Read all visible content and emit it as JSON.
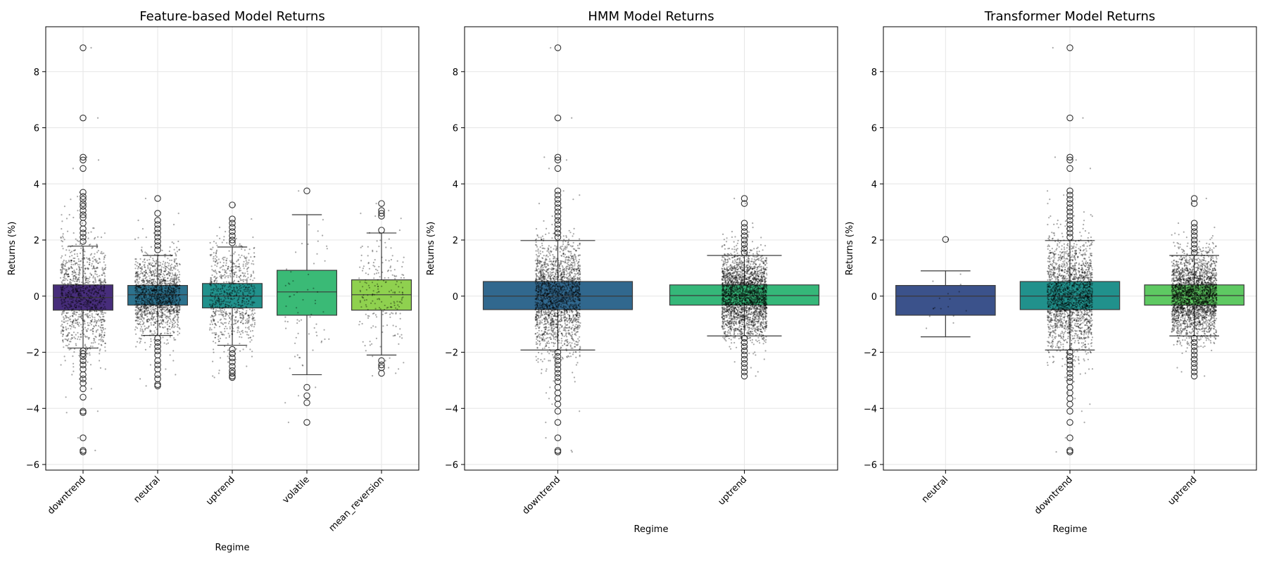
{
  "chart_data": [
    {
      "type": "box",
      "title": "Feature-based Model Returns",
      "xlabel": "Regime",
      "ylabel": "Returns (%)",
      "ylim": [
        -6.2,
        9.6
      ],
      "yticks": [
        -6,
        -4,
        -2,
        0,
        2,
        4,
        6,
        8
      ],
      "grid": true,
      "categories": [
        "downtrend",
        "neutral",
        "uptrend",
        "volatile",
        "mean_reversion"
      ],
      "colors": [
        "#472d7b",
        "#2c728e",
        "#21918c",
        "#3aba76",
        "#8fd14f"
      ],
      "boxes": [
        {
          "q1": -0.5,
          "median": -0.05,
          "q3": 0.4,
          "whisker_low": -1.85,
          "whisker_high": 1.78,
          "n_points": 1100,
          "spread": 1.0,
          "outliers": [
            8.85,
            6.35,
            4.95,
            4.85,
            4.55,
            3.7,
            3.55,
            3.45,
            3.3,
            3.2,
            3.05,
            2.9,
            2.8,
            2.6,
            2.4,
            2.25,
            2.1,
            1.95,
            -1.95,
            -2.05,
            -2.15,
            -2.3,
            -2.45,
            -2.6,
            -2.8,
            -2.95,
            -3.1,
            -3.3,
            -3.6,
            -4.1,
            -4.15,
            -5.05,
            -5.5,
            -5.55
          ]
        },
        {
          "q1": -0.32,
          "median": 0.05,
          "q3": 0.38,
          "whisker_low": -1.4,
          "whisker_high": 1.45,
          "n_points": 1500,
          "spread": 0.7,
          "outliers": [
            3.48,
            2.95,
            2.7,
            2.55,
            2.4,
            2.25,
            2.1,
            1.95,
            1.8,
            1.65,
            -1.5,
            -1.65,
            -1.8,
            -1.95,
            -2.1,
            -2.3,
            -2.45,
            -2.6,
            -2.8,
            -2.95,
            -3.15,
            -3.2
          ]
        },
        {
          "q1": -0.42,
          "median": 0.0,
          "q3": 0.45,
          "whisker_low": -1.75,
          "whisker_high": 1.75,
          "n_points": 800,
          "spread": 0.9,
          "outliers": [
            3.25,
            2.75,
            2.6,
            2.45,
            2.3,
            2.15,
            2.0,
            1.9,
            -1.9,
            -2.05,
            -2.2,
            -2.35,
            -2.5,
            -2.65,
            -2.75,
            -2.85,
            -2.9
          ]
        },
        {
          "q1": -0.68,
          "median": 0.15,
          "q3": 0.92,
          "whisker_low": -2.8,
          "whisker_high": 2.9,
          "n_points": 70,
          "spread": 1.3,
          "outliers": [
            3.75,
            -3.25,
            -3.55,
            -3.8,
            -4.5
          ]
        },
        {
          "q1": -0.5,
          "median": 0.05,
          "q3": 0.58,
          "whisker_low": -2.1,
          "whisker_high": 2.25,
          "n_points": 220,
          "spread": 1.0,
          "outliers": [
            3.3,
            3.05,
            2.95,
            2.85,
            2.35,
            -2.3,
            -2.45,
            -2.55,
            -2.75
          ]
        }
      ]
    },
    {
      "type": "box",
      "title": "HMM Model Returns",
      "xlabel": "Regime",
      "ylabel": "Returns (%)",
      "ylim": [
        -6.2,
        9.6
      ],
      "yticks": [
        -6,
        -4,
        -2,
        0,
        2,
        4,
        6,
        8
      ],
      "grid": true,
      "categories": [
        "downtrend",
        "uptrend"
      ],
      "colors": [
        "#31688e",
        "#35b779"
      ],
      "boxes": [
        {
          "q1": -0.48,
          "median": 0.0,
          "q3": 0.52,
          "whisker_low": -1.92,
          "whisker_high": 1.98,
          "n_points": 2000,
          "spread": 1.0,
          "outliers": [
            8.85,
            6.35,
            4.95,
            4.85,
            4.55,
            3.75,
            3.6,
            3.45,
            3.3,
            3.15,
            3.0,
            2.85,
            2.7,
            2.55,
            2.4,
            2.25,
            2.1,
            -2.0,
            -2.15,
            -2.3,
            -2.45,
            -2.6,
            -2.75,
            -2.9,
            -3.05,
            -3.25,
            -3.45,
            -3.65,
            -3.85,
            -4.1,
            -4.5,
            -5.05,
            -5.5,
            -5.55
          ]
        },
        {
          "q1": -0.32,
          "median": 0.02,
          "q3": 0.4,
          "whisker_low": -1.42,
          "whisker_high": 1.45,
          "n_points": 2600,
          "spread": 0.75,
          "outliers": [
            3.48,
            3.3,
            2.6,
            2.45,
            2.3,
            2.15,
            2.0,
            1.85,
            1.7,
            1.55,
            -1.5,
            -1.65,
            -1.8,
            -1.95,
            -2.1,
            -2.25,
            -2.4,
            -2.55,
            -2.7,
            -2.85
          ]
        }
      ]
    },
    {
      "type": "box",
      "title": "Transformer Model Returns",
      "xlabel": "Regime",
      "ylabel": "Returns (%)",
      "ylim": [
        -6.2,
        9.6
      ],
      "yticks": [
        -6,
        -4,
        -2,
        0,
        2,
        4,
        6,
        8
      ],
      "grid": true,
      "categories": [
        "neutral",
        "downtrend",
        "uptrend"
      ],
      "colors": [
        "#3b528b",
        "#21918c",
        "#5ec962"
      ],
      "boxes": [
        {
          "q1": -0.68,
          "median": 0.0,
          "q3": 0.38,
          "whisker_low": -1.45,
          "whisker_high": 0.9,
          "n_points": 18,
          "spread": 0.6,
          "outliers": [
            2.02
          ]
        },
        {
          "q1": -0.48,
          "median": 0.0,
          "q3": 0.52,
          "whisker_low": -1.92,
          "whisker_high": 1.98,
          "n_points": 2000,
          "spread": 1.0,
          "outliers": [
            8.85,
            6.35,
            4.95,
            4.85,
            4.55,
            3.75,
            3.6,
            3.45,
            3.3,
            3.15,
            3.0,
            2.85,
            2.7,
            2.55,
            2.4,
            2.25,
            2.1,
            -2.0,
            -2.15,
            -2.3,
            -2.45,
            -2.6,
            -2.75,
            -2.9,
            -3.05,
            -3.25,
            -3.45,
            -3.65,
            -3.85,
            -4.1,
            -4.5,
            -5.05,
            -5.5,
            -5.55
          ]
        },
        {
          "q1": -0.32,
          "median": 0.02,
          "q3": 0.4,
          "whisker_low": -1.42,
          "whisker_high": 1.45,
          "n_points": 2600,
          "spread": 0.75,
          "outliers": [
            3.48,
            3.3,
            2.6,
            2.45,
            2.3,
            2.15,
            2.0,
            1.85,
            1.7,
            1.55,
            -1.5,
            -1.65,
            -1.8,
            -1.95,
            -2.1,
            -2.25,
            -2.4,
            -2.55,
            -2.7,
            -2.85
          ]
        }
      ]
    }
  ]
}
